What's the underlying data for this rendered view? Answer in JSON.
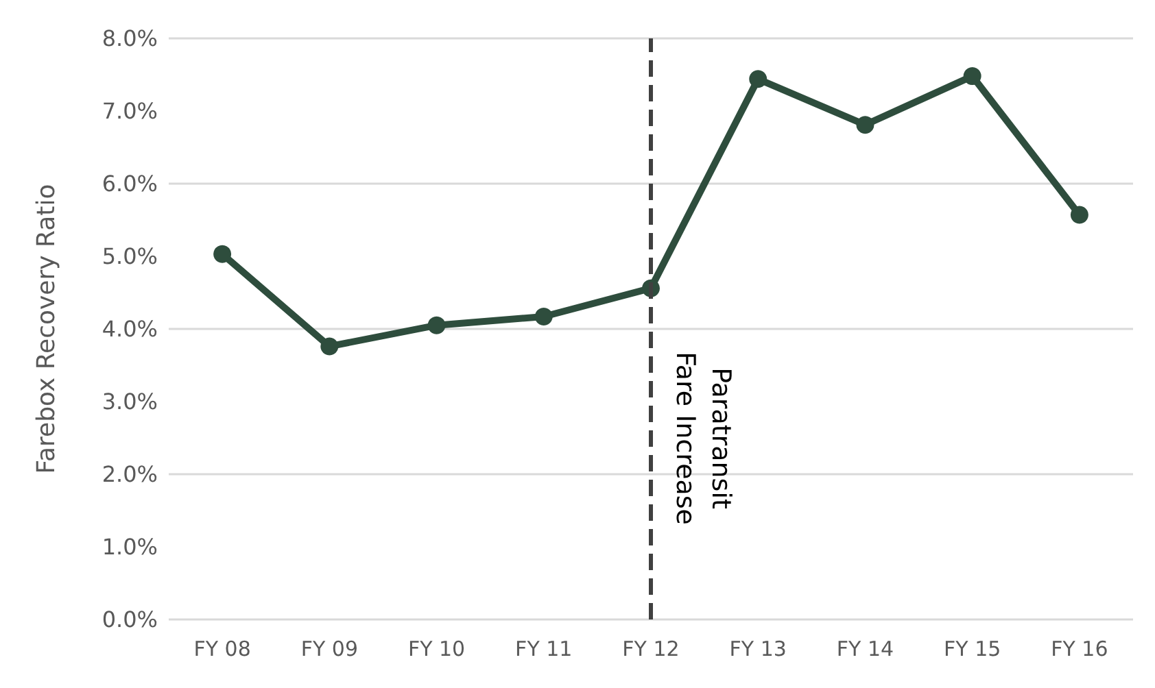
{
  "chart_data": {
    "type": "line",
    "ylabel": "Farebox Recovery Ratio",
    "categories": [
      "FY 08",
      "FY 09",
      "FY 10",
      "FY 11",
      "FY 12",
      "FY 13",
      "FY 14",
      "FY 15",
      "FY 16"
    ],
    "series": [
      {
        "color": "#2e4d3d",
        "values": [
          5.03,
          3.76,
          4.05,
          4.17,
          4.56,
          7.44,
          6.81,
          7.48,
          5.57
        ]
      }
    ],
    "ylim": [
      0,
      8
    ],
    "yticks": [
      {
        "value": 0,
        "label": "0.0%"
      },
      {
        "value": 1,
        "label": "1.0%"
      },
      {
        "value": 2,
        "label": "2.0%"
      },
      {
        "value": 3,
        "label": "3.0%"
      },
      {
        "value": 4,
        "label": "4.0%"
      },
      {
        "value": 5,
        "label": "5.0%"
      },
      {
        "value": 6,
        "label": "6.0%"
      },
      {
        "value": 7,
        "label": "7.0%"
      },
      {
        "value": 8,
        "label": "8.0%"
      }
    ],
    "ref_lines": [
      {
        "axis": "x",
        "value": "FY 12",
        "label": "Paratransit\nFare Increase",
        "color": "#404040",
        "line_style": "dashed"
      }
    ],
    "grid": "y",
    "marker": "circle",
    "line_style": "solid"
  }
}
